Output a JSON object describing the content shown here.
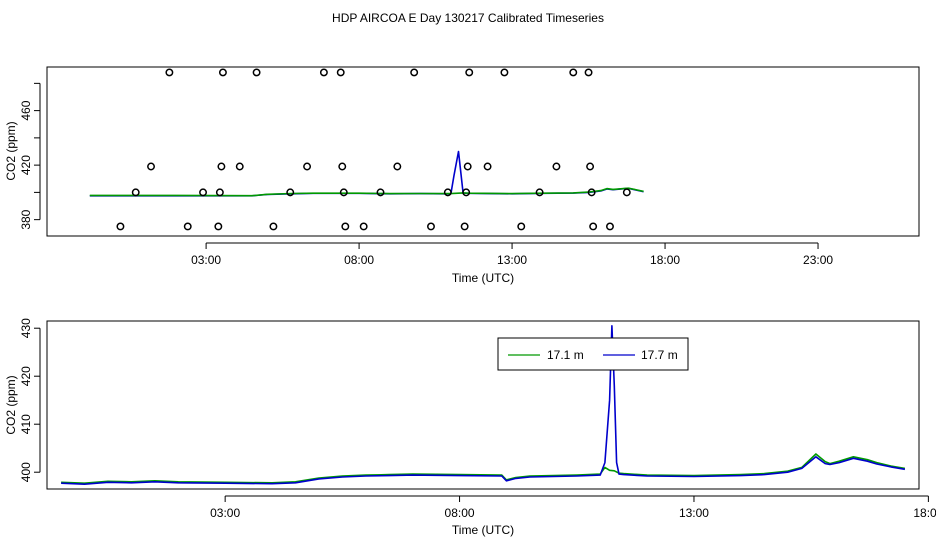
{
  "title": "HDP AIRCOA E  Day 130217  Calibrated Timeseries",
  "chart_data": [
    {
      "type": "scatter",
      "xlabel": "Time (UTC)",
      "ylabel": "CO2 (ppm)",
      "xlim": [
        -2.2,
        26.3
      ],
      "ylim": [
        368,
        492
      ],
      "xticks": [
        3,
        8,
        13,
        18,
        23
      ],
      "xtick_labels": [
        "03:00",
        "08:00",
        "13:00",
        "18:00",
        "23:00"
      ],
      "yticks": [
        380,
        420,
        460
      ],
      "ytick_labels": [
        "380",
        "420",
        "460"
      ],
      "yminor_ticks": [
        400,
        440,
        480
      ],
      "calibration_points": [
        {
          "x": 0.2,
          "y": 375
        },
        {
          "x": 0.7,
          "y": 400
        },
        {
          "x": 1.2,
          "y": 419
        },
        {
          "x": 1.8,
          "y": 488
        },
        {
          "x": 2.4,
          "y": 375
        },
        {
          "x": 2.9,
          "y": 400
        },
        {
          "x": 3.4,
          "y": 375
        },
        {
          "x": 3.45,
          "y": 400
        },
        {
          "x": 3.5,
          "y": 419
        },
        {
          "x": 3.55,
          "y": 488
        },
        {
          "x": 4.1,
          "y": 419
        },
        {
          "x": 4.65,
          "y": 488
        },
        {
          "x": 5.2,
          "y": 375
        },
        {
          "x": 5.75,
          "y": 400
        },
        {
          "x": 6.3,
          "y": 419
        },
        {
          "x": 6.85,
          "y": 488
        },
        {
          "x": 7.4,
          "y": 488
        },
        {
          "x": 7.45,
          "y": 419
        },
        {
          "x": 7.5,
          "y": 400
        },
        {
          "x": 7.55,
          "y": 375
        },
        {
          "x": 8.15,
          "y": 375
        },
        {
          "x": 8.7,
          "y": 400
        },
        {
          "x": 9.25,
          "y": 419
        },
        {
          "x": 9.8,
          "y": 488
        },
        {
          "x": 10.35,
          "y": 375
        },
        {
          "x": 10.9,
          "y": 400
        },
        {
          "x": 11.45,
          "y": 375
        },
        {
          "x": 11.5,
          "y": 400
        },
        {
          "x": 11.55,
          "y": 419
        },
        {
          "x": 11.6,
          "y": 488
        },
        {
          "x": 12.2,
          "y": 419
        },
        {
          "x": 12.75,
          "y": 488
        },
        {
          "x": 13.3,
          "y": 375
        },
        {
          "x": 13.9,
          "y": 400
        },
        {
          "x": 14.45,
          "y": 419
        },
        {
          "x": 15.0,
          "y": 488
        },
        {
          "x": 15.5,
          "y": 488
        },
        {
          "x": 15.55,
          "y": 419
        },
        {
          "x": 15.6,
          "y": 400
        },
        {
          "x": 15.65,
          "y": 375
        },
        {
          "x": 16.2,
          "y": 375
        },
        {
          "x": 16.75,
          "y": 400
        }
      ],
      "series": [
        {
          "name": "17.7 m",
          "color": "#0000cc",
          "x": [
            -0.8,
            2.0,
            4.5,
            5.0,
            5.8,
            6.5,
            8.0,
            9.0,
            10.0,
            10.8,
            11.0,
            11.1,
            11.25,
            11.4,
            11.6,
            13.0,
            14.0,
            15.0,
            15.5,
            15.9,
            16.1,
            16.3,
            16.8,
            17.0,
            17.3
          ],
          "y": [
            397.5,
            397.5,
            397.5,
            398.5,
            399,
            399.3,
            399.3,
            399,
            399.1,
            399,
            399,
            412,
            430,
            399.5,
            399.3,
            399,
            399.3,
            399.5,
            400,
            401,
            402.5,
            402,
            403,
            402,
            400.5
          ]
        },
        {
          "name": "17.1 m",
          "color": "#009900",
          "x": [
            -0.8,
            2.0,
            4.5,
            5.0,
            5.8,
            6.5,
            8.0,
            9.0,
            10.0,
            10.8,
            11.0,
            11.4,
            11.6,
            13.0,
            14.0,
            15.0,
            15.5,
            15.9,
            16.1,
            16.3,
            16.8,
            17.0,
            17.3
          ],
          "y": [
            397.8,
            397.8,
            397.6,
            398.6,
            399.2,
            399.4,
            399.4,
            399.1,
            399.2,
            399.1,
            399.1,
            399.6,
            399.4,
            399.1,
            399.4,
            399.6,
            400.2,
            401.3,
            402.8,
            402.2,
            403.1,
            402.2,
            400.7
          ]
        }
      ]
    },
    {
      "type": "line",
      "xlabel": "Time (UTC)",
      "ylabel": "CO2 (ppm)",
      "xlim": [
        -0.8,
        17.8
      ],
      "ylim": [
        396.5,
        431.5
      ],
      "xticks": [
        3,
        8,
        13,
        18
      ],
      "xtick_labels": [
        "03:00",
        "08:00",
        "13:00",
        "18:00"
      ],
      "yticks": [
        400,
        410,
        420,
        430
      ],
      "ytick_labels": [
        "400",
        "410",
        "420",
        "430"
      ],
      "legend_position": "top-right",
      "series": [
        {
          "name": "17.1 m",
          "color": "#009900",
          "x": [
            -0.5,
            0.0,
            0.5,
            1.0,
            1.5,
            2.0,
            3.0,
            4.0,
            4.5,
            5.0,
            5.5,
            6.0,
            6.5,
            7.0,
            8.0,
            8.9,
            9.0,
            9.2,
            9.5,
            10.0,
            10.5,
            11.0,
            11.1,
            11.2,
            11.3,
            11.4,
            11.5,
            12.0,
            13.0,
            14.0,
            14.5,
            15.0,
            15.3,
            15.6,
            15.8,
            15.9,
            16.1,
            16.4,
            16.7,
            16.9,
            17.2,
            17.5
          ],
          "y": [
            397.9,
            397.7,
            398.1,
            398.0,
            398.2,
            398.0,
            397.9,
            397.8,
            398.0,
            398.8,
            399.2,
            399.4,
            399.5,
            399.6,
            399.5,
            399.4,
            398.4,
            398.9,
            399.2,
            399.3,
            399.4,
            399.6,
            401.0,
            400.4,
            400.3,
            399.8,
            399.7,
            399.4,
            399.3,
            399.5,
            399.7,
            400.2,
            401.0,
            403.8,
            402.2,
            401.8,
            402.3,
            403.2,
            402.6,
            402.0,
            401.3,
            400.8
          ]
        },
        {
          "name": "17.7 m",
          "color": "#0000cc",
          "x": [
            -0.5,
            0.0,
            0.5,
            1.0,
            1.5,
            2.0,
            3.0,
            4.0,
            4.5,
            5.0,
            5.5,
            6.0,
            6.5,
            7.0,
            8.0,
            8.9,
            9.0,
            9.2,
            9.5,
            10.0,
            10.5,
            11.0,
            11.1,
            11.2,
            11.25,
            11.3,
            11.35,
            11.4,
            11.5,
            12.0,
            13.0,
            14.0,
            14.5,
            15.0,
            15.3,
            15.6,
            15.8,
            15.9,
            16.1,
            16.4,
            16.7,
            16.9,
            17.2,
            17.5
          ],
          "y": [
            397.7,
            397.5,
            397.9,
            397.8,
            398.0,
            397.8,
            397.7,
            397.6,
            397.8,
            398.6,
            399.0,
            399.2,
            399.3,
            399.4,
            399.3,
            399.2,
            398.2,
            398.7,
            399.0,
            399.1,
            399.2,
            399.4,
            402.0,
            415.0,
            430.5,
            418.0,
            402.0,
            399.6,
            399.5,
            399.2,
            399.1,
            399.3,
            399.5,
            400.0,
            400.8,
            403.2,
            401.8,
            401.6,
            402.0,
            402.9,
            402.3,
            401.7,
            401.1,
            400.6
          ]
        }
      ]
    }
  ]
}
